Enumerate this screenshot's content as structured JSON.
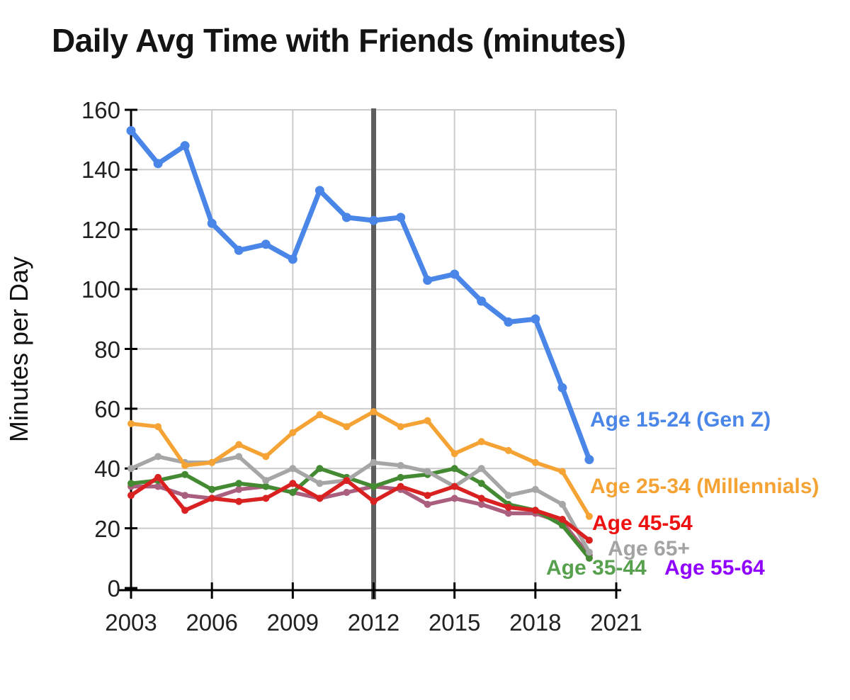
{
  "title": "Daily Avg Time with Friends (minutes)",
  "y_axis": {
    "title": "Minutes per Day",
    "ticks": [
      0,
      20,
      40,
      60,
      80,
      100,
      120,
      140,
      160
    ]
  },
  "x_axis": {
    "ticks": [
      2003,
      2006,
      2009,
      2012,
      2015,
      2018,
      2021
    ]
  },
  "chart_data": {
    "type": "line",
    "title": "Daily Avg Time with Friends (minutes)",
    "xlabel": "",
    "ylabel": "Minutes per Day",
    "xlim": [
      2003,
      2021
    ],
    "ylim": [
      0,
      160
    ],
    "grid": true,
    "reference_line": {
      "x": 2012,
      "color": "#5f5f5f"
    },
    "legend_position": "right-of-line-ends",
    "x": [
      2003,
      2004,
      2005,
      2006,
      2007,
      2008,
      2009,
      2010,
      2011,
      2012,
      2013,
      2014,
      2015,
      2016,
      2017,
      2018,
      2019,
      2020
    ],
    "series": [
      {
        "name": "Age 15-24 (Gen Z)",
        "color": "#4a86e8",
        "label_color": "#4a86e8",
        "values": [
          153,
          142,
          148,
          122,
          113,
          115,
          110,
          133,
          124,
          123,
          124,
          103,
          105,
          96,
          89,
          90,
          67,
          43
        ]
      },
      {
        "name": "Age 25-34 (Millennials)",
        "color": "#f4a334",
        "label_color": "#f4a334",
        "values": [
          55,
          54,
          41,
          42,
          48,
          44,
          52,
          58,
          54,
          59,
          54,
          56,
          45,
          49,
          46,
          42,
          39,
          24
        ]
      },
      {
        "name": "Age 45-54",
        "color": "#d92121",
        "label_color": "#ee1111",
        "values": [
          31,
          37,
          26,
          30,
          29,
          30,
          35,
          30,
          36,
          29,
          34,
          31,
          34,
          30,
          27,
          26,
          23,
          16
        ]
      },
      {
        "name": "Age 65+",
        "color": "#a6a6a6",
        "label_color": "#a3a3a3",
        "values": [
          40,
          44,
          42,
          42,
          44,
          36,
          40,
          35,
          36,
          42,
          41,
          39,
          34,
          40,
          31,
          33,
          28,
          12
        ]
      },
      {
        "name": "Age 35-44",
        "color": "#448a33",
        "label_color": "#56a04e",
        "values": [
          35,
          36,
          38,
          33,
          35,
          34,
          32,
          40,
          37,
          34,
          37,
          38,
          40,
          35,
          28,
          26,
          21,
          10
        ]
      },
      {
        "name": "Age 55-64",
        "color": "#ab5f7f",
        "label_color": "#8f00ff",
        "values": [
          34,
          34,
          31,
          30,
          33,
          34,
          32,
          30,
          32,
          34,
          33,
          28,
          30,
          28,
          25,
          25,
          22,
          11
        ]
      }
    ]
  }
}
